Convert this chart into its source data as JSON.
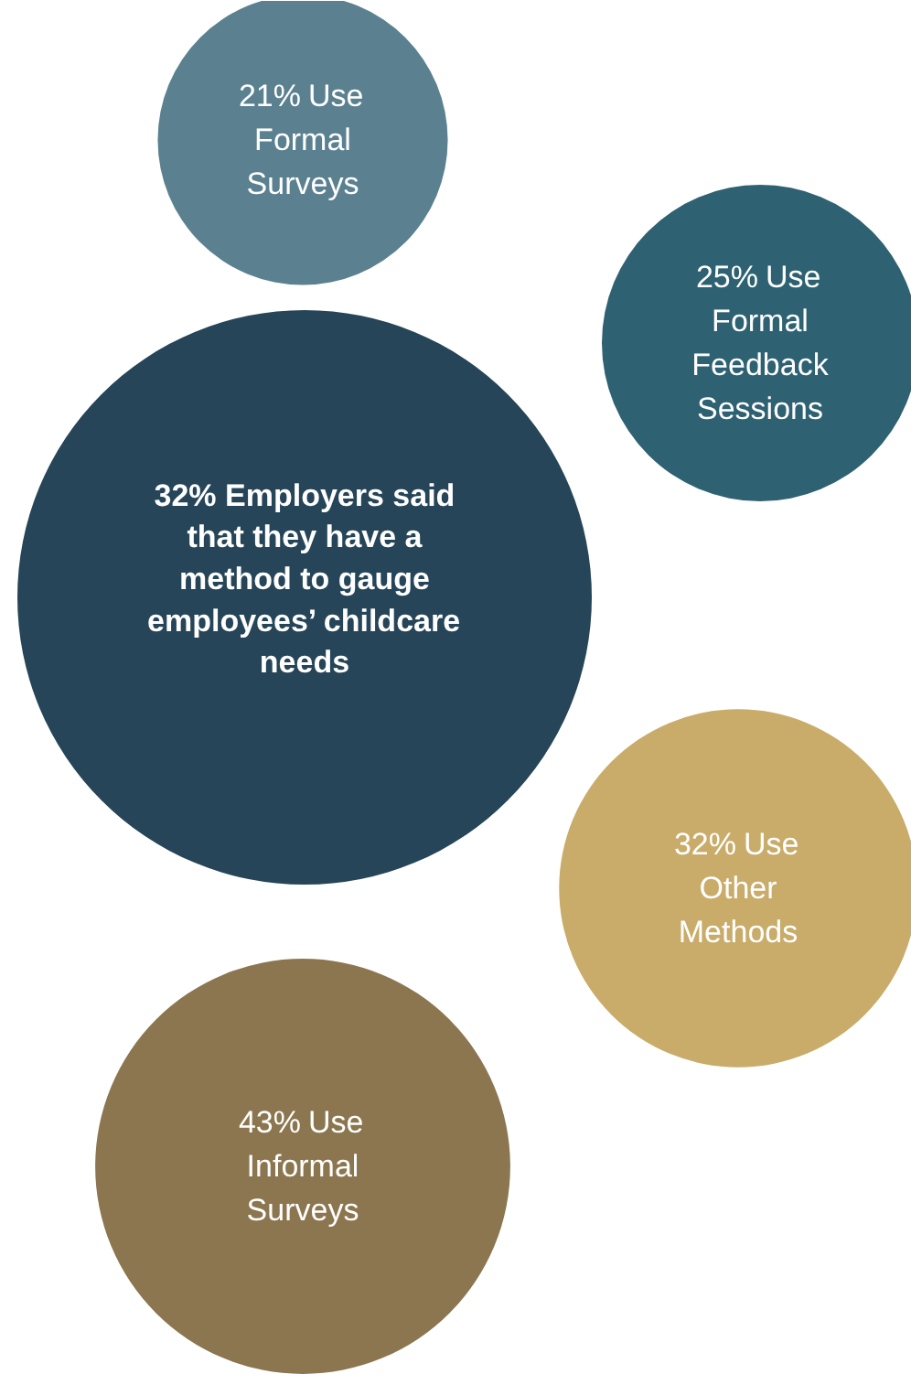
{
  "chart_data": {
    "type": "other",
    "title": "32% Employers said that they have a method to gauge employees’ childcare needs",
    "categories": [
      "Use Formal Surveys",
      "Use Formal Feedback Sessions",
      "Use Other Methods",
      "Use Informal Surveys"
    ],
    "values": [
      21,
      25,
      32,
      43
    ],
    "value_labels": [
      "21%",
      "25%",
      "32%",
      "43%"
    ],
    "colors": [
      "#5b8190",
      "#2e6171",
      "#c9ac6a",
      "#8b764f"
    ]
  }
}
